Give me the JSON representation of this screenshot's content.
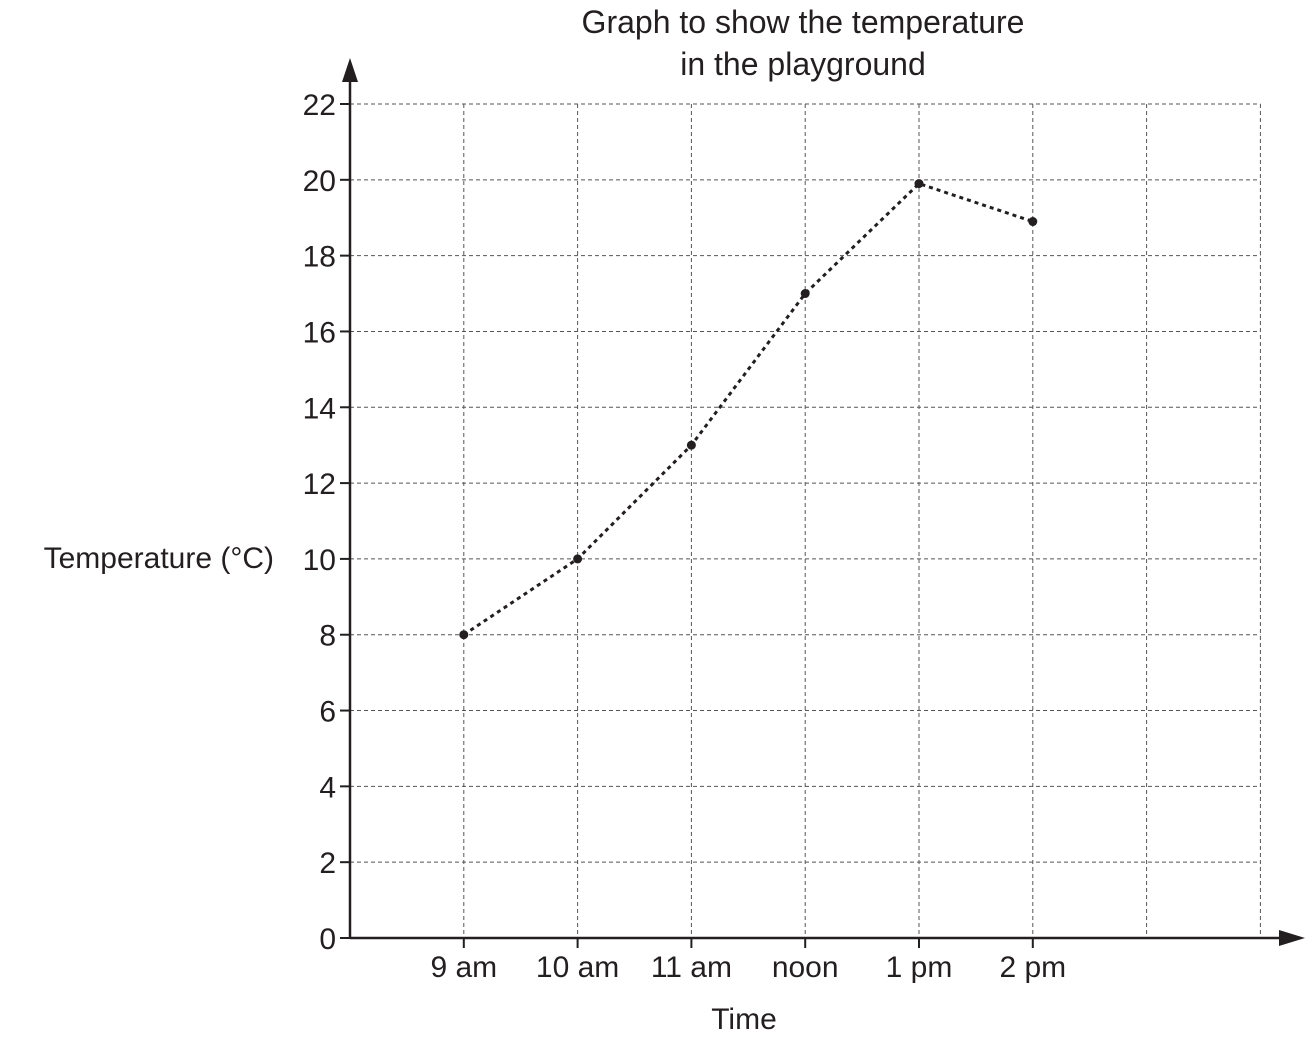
{
  "chart_data": {
    "type": "line",
    "title_lines": [
      "Graph to show the temperature",
      "in the playground"
    ],
    "xlabel": "Time",
    "ylabel": "Temperature (°C)",
    "categories": [
      "9 am",
      "10 am",
      "11 am",
      "noon",
      "1 pm",
      "2 pm"
    ],
    "values": [
      8,
      10,
      13,
      17,
      19.9,
      18.9
    ],
    "ylim": [
      0,
      22
    ],
    "yticks": [
      "0",
      "2",
      "4",
      "6",
      "8",
      "10",
      "12",
      "14",
      "16",
      "18",
      "20",
      "22"
    ],
    "grid": true,
    "legend": "none",
    "colors": {
      "ink": "#231f20",
      "grid": "#555555"
    }
  }
}
